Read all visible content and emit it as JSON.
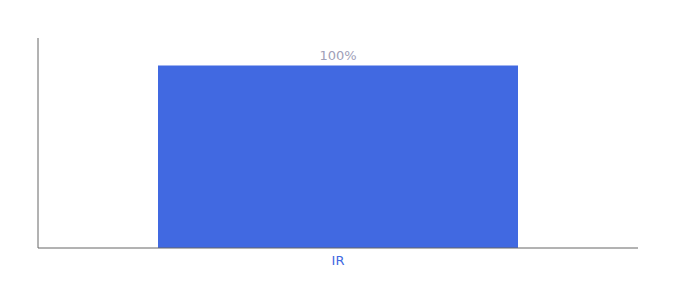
{
  "chart_data": {
    "type": "bar",
    "categories": [
      "IR"
    ],
    "values": [
      100
    ],
    "value_labels": [
      "100%"
    ],
    "data_labels": true,
    "color": "#4169e1",
    "ylim": [
      0,
      115
    ],
    "tick_labels": "x",
    "grid": false
  }
}
